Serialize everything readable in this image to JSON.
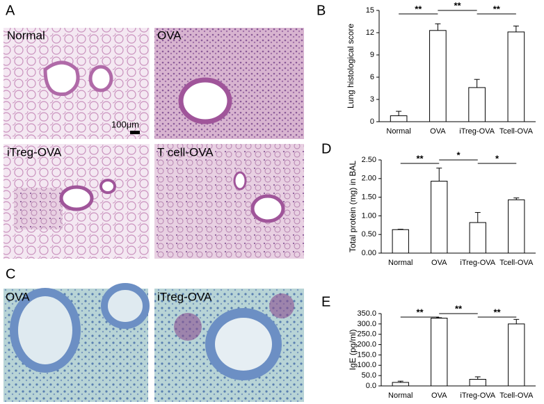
{
  "figures": [
    {
      "panel": "A",
      "images": [
        {
          "label": "Normal"
        },
        {
          "label": "OVA"
        },
        {
          "label": "iTreg-OVA"
        },
        {
          "label": "T cell-OVA"
        }
      ],
      "scale_bar": "100μm"
    },
    {
      "panel": "C",
      "images": [
        {
          "label": "OVA"
        },
        {
          "label": "iTreg-OVA"
        }
      ]
    }
  ],
  "chart_data": [
    {
      "type": "bar",
      "panel": "B",
      "ylabel": "Lung histological score",
      "categories": [
        "Normal",
        "OVA",
        "iTreg-OVA",
        "Tcell-OVA"
      ],
      "values": [
        0.8,
        12.3,
        4.6,
        12.1
      ],
      "errors": [
        0.6,
        0.9,
        1.1,
        0.8
      ],
      "color": "#ffffff",
      "ylim": [
        0,
        15
      ],
      "yticks": [
        0,
        3,
        6,
        9,
        12,
        15
      ],
      "annotations": [
        {
          "text": "**",
          "from": "Normal",
          "to": "OVA"
        },
        {
          "text": "**",
          "from": "OVA",
          "to": "iTreg-OVA"
        },
        {
          "text": "**",
          "from": "iTreg-OVA",
          "to": "Tcell-OVA"
        }
      ]
    },
    {
      "type": "bar",
      "panel": "D",
      "ylabel": "Total protein (mg) in BAL",
      "categories": [
        "Normal",
        "OVA",
        "iTreg-OVA",
        "Tcell-OVA"
      ],
      "values": [
        0.63,
        1.93,
        0.82,
        1.43
      ],
      "errors": [
        0.01,
        0.35,
        0.27,
        0.05
      ],
      "color": "#ffffff",
      "ylim": [
        0,
        2.5
      ],
      "yticks": [
        {
          "value": 0,
          "label": "0.00"
        },
        {
          "value": 0.5,
          "label": "0.50"
        },
        {
          "value": 1,
          "label": "1.00"
        },
        {
          "value": 1.5,
          "label": "1.50"
        },
        {
          "value": 2,
          "label": "2.00"
        },
        {
          "value": 2.5,
          "label": "2.50"
        }
      ],
      "annotations": [
        {
          "text": "**",
          "from": "Normal",
          "to": "OVA"
        },
        {
          "text": "*",
          "from": "OVA",
          "to": "iTreg-OVA"
        },
        {
          "text": "*",
          "from": "iTreg-OVA",
          "to": "Tcell-OVA"
        }
      ]
    },
    {
      "type": "bar",
      "panel": "E",
      "ylabel": "IgE (pg/ml)",
      "categories": [
        "Normal",
        "OVA",
        "iTreg-OVA",
        "Tcell-OVA"
      ],
      "values": [
        17,
        328,
        32,
        300
      ],
      "errors": [
        6,
        2,
        12,
        22
      ],
      "color": "#ffffff",
      "ylim": [
        0,
        350
      ],
      "yticks": [
        {
          "value": 0,
          "label": "0.0"
        },
        {
          "value": 50,
          "label": "50.0"
        },
        {
          "value": 100,
          "label": "100.0"
        },
        {
          "value": 150,
          "label": "150.0"
        },
        {
          "value": 200,
          "label": "200.0"
        },
        {
          "value": 250,
          "label": "250.0"
        },
        {
          "value": 300,
          "label": "300.0"
        },
        {
          "value": 350,
          "label": "350.0"
        }
      ],
      "annotations": [
        {
          "text": "**",
          "from": "Normal",
          "to": "OVA"
        },
        {
          "text": "**",
          "from": "OVA",
          "to": "iTreg-OVA"
        },
        {
          "text": "**",
          "from": "iTreg-OVA",
          "to": "Tcell-OVA"
        }
      ]
    }
  ]
}
